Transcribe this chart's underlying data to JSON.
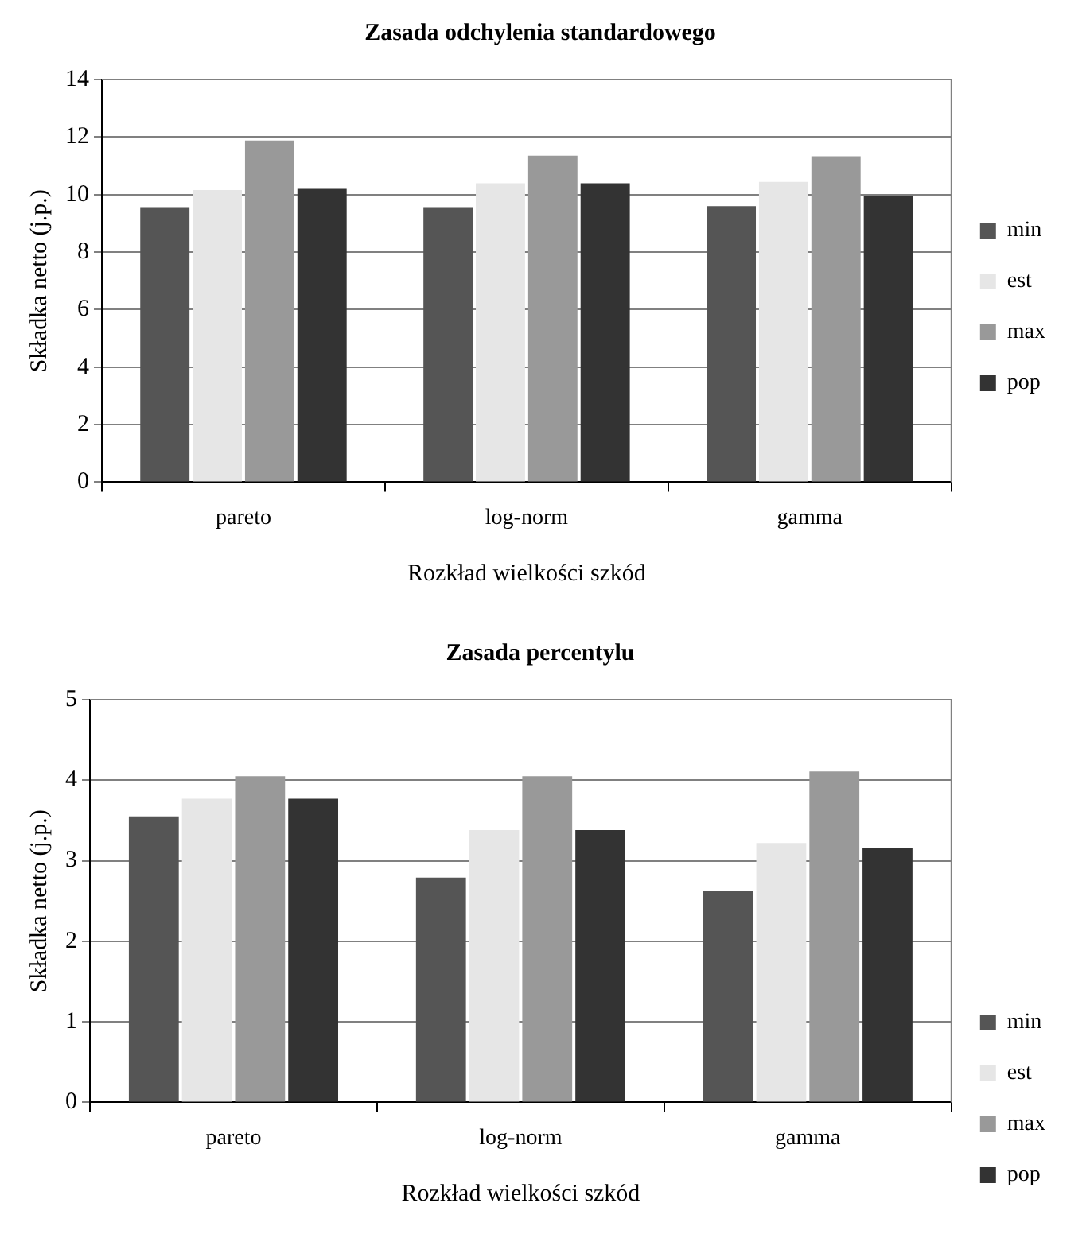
{
  "chart_data": [
    {
      "type": "bar",
      "title": "Zasada odchylenia standardowego",
      "xlabel": "Rozkład wielkości szkód",
      "ylabel": "Składka netto (j.p.)",
      "categories": [
        "pareto",
        "log-norm",
        "gamma"
      ],
      "series": [
        {
          "name": "min",
          "color": "#555555",
          "values": [
            9.56,
            9.56,
            9.6
          ]
        },
        {
          "name": "est",
          "color": "#e6e6e6",
          "values": [
            10.16,
            10.39,
            10.44
          ]
        },
        {
          "name": "max",
          "color": "#999999",
          "values": [
            11.88,
            11.35,
            11.33
          ]
        },
        {
          "name": "pop",
          "color": "#333333",
          "values": [
            10.2,
            10.39,
            9.95
          ]
        }
      ],
      "ylim": [
        0,
        14
      ],
      "yticks": [
        0,
        2,
        4,
        6,
        8,
        10,
        12,
        14
      ],
      "grid": "y",
      "legend": "right"
    },
    {
      "type": "bar",
      "title": "Zasada percentylu",
      "xlabel": "Rozkład wielkości szkód",
      "ylabel": "Składka netto (j.p.)",
      "categories": [
        "pareto",
        "log-norm",
        "gamma"
      ],
      "series": [
        {
          "name": "min",
          "color": "#555555",
          "values": [
            3.55,
            2.79,
            2.62
          ]
        },
        {
          "name": "est",
          "color": "#e6e6e6",
          "values": [
            3.77,
            3.38,
            3.22
          ]
        },
        {
          "name": "max",
          "color": "#999999",
          "values": [
            4.05,
            4.05,
            4.11
          ]
        },
        {
          "name": "pop",
          "color": "#333333",
          "values": [
            3.77,
            3.38,
            3.16
          ]
        }
      ],
      "ylim": [
        0,
        5
      ],
      "yticks": [
        0,
        1,
        2,
        3,
        4,
        5
      ],
      "grid": "y",
      "legend": "bottom right"
    }
  ]
}
